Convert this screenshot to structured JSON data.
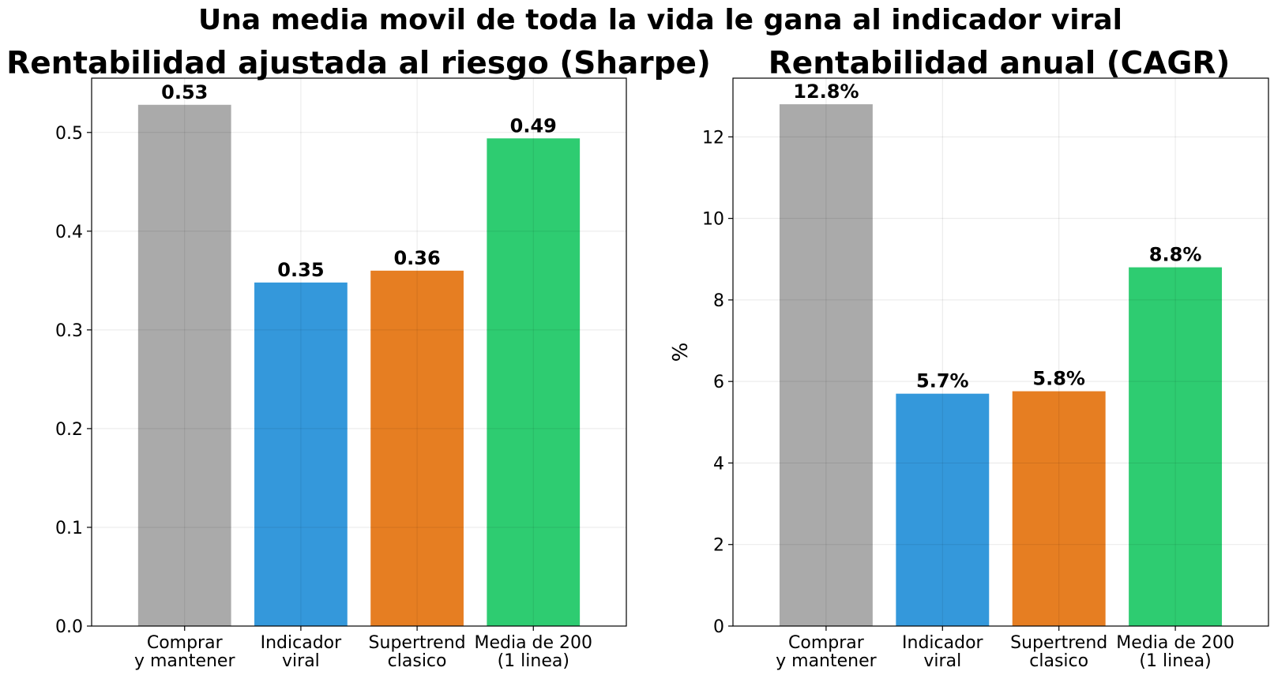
{
  "suptitle": "Una media movil de toda la vida le gana al indicador viral",
  "colors": [
    "#aaaaaa",
    "#3498db",
    "#e67e22",
    "#2ecc71"
  ],
  "chart_data": [
    {
      "type": "bar",
      "title": "Rentabilidad ajustada al riesgo (Sharpe)",
      "xlabel": "",
      "ylabel": "",
      "categories": [
        "Comprar\ny mantener",
        "Indicador\nviral",
        "Supertrend\nclasico",
        "Media de 200\n(1 linea)"
      ],
      "values": [
        0.528,
        0.348,
        0.36,
        0.494
      ],
      "data_labels": [
        "0.53",
        "0.35",
        "0.36",
        "0.49"
      ],
      "ylim": [
        0,
        0.555
      ],
      "yticks": [
        0.0,
        0.1,
        0.2,
        0.3,
        0.4,
        0.5
      ],
      "ytick_labels": [
        "0.0",
        "0.1",
        "0.2",
        "0.3",
        "0.4",
        "0.5"
      ],
      "grid": true
    },
    {
      "type": "bar",
      "title": "Rentabilidad anual (CAGR)",
      "xlabel": "",
      "ylabel": "%",
      "categories": [
        "Comprar\ny mantener",
        "Indicador\nviral",
        "Supertrend\nclasico",
        "Media de 200\n(1 linea)"
      ],
      "values": [
        12.8,
        5.7,
        5.76,
        8.8
      ],
      "data_labels": [
        "12.8%",
        "5.7%",
        "5.8%",
        "8.8%"
      ],
      "ylim": [
        0,
        13.44
      ],
      "yticks": [
        0,
        2,
        4,
        6,
        8,
        10,
        12
      ],
      "ytick_labels": [
        "0",
        "2",
        "4",
        "6",
        "8",
        "10",
        "12"
      ],
      "grid": true
    }
  ]
}
